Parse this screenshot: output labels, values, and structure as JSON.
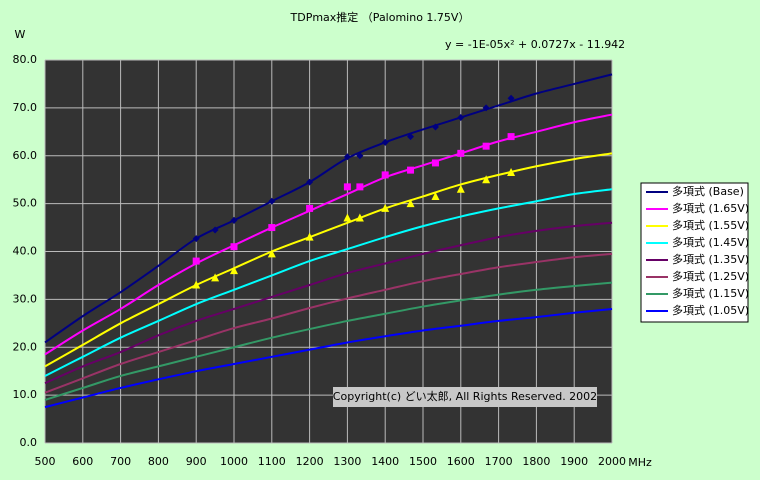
{
  "chart_data": {
    "type": "line",
    "title": "TDPmax推定 （Palomino 1.75V）",
    "y_label": "W",
    "x_label": "MHz",
    "equation": "y = -1E-05x² + 0.0727x - 11.942",
    "copyright": "Copyright(c) どい太郎, All Rights Reserved. 2002",
    "x": [
      500,
      600,
      700,
      800,
      900,
      1000,
      1100,
      1200,
      1300,
      1400,
      1500,
      1600,
      1700,
      1800,
      1900,
      2000
    ],
    "xlim": [
      500,
      2000
    ],
    "xticks": [
      500,
      600,
      700,
      800,
      900,
      1000,
      1100,
      1200,
      1300,
      1400,
      1500,
      1600,
      1700,
      1800,
      1900,
      2000
    ],
    "ylim": [
      0,
      80
    ],
    "yticks": [
      {
        "value": 0,
        "label": "0.0"
      },
      {
        "value": 10,
        "label": "10.0"
      },
      {
        "value": 20,
        "label": "20.0"
      },
      {
        "value": 30,
        "label": "30.0"
      },
      {
        "value": 40,
        "label": "40.0"
      },
      {
        "value": 50,
        "label": "50.0"
      },
      {
        "value": 60,
        "label": "60.0"
      },
      {
        "value": 70,
        "label": "70.0"
      },
      {
        "value": 80,
        "label": "80.0"
      }
    ],
    "grid": true,
    "legend": "right",
    "series": [
      {
        "name": "多項式 (Base)",
        "color": "#000080",
        "values": [
          21,
          26.5,
          31.5,
          37,
          42.7,
          46.5,
          50.5,
          54.5,
          59.5,
          62.8,
          65.5,
          68,
          70.5,
          73,
          75,
          77
        ],
        "marker": "diamond",
        "points": {
          "x": [
            900,
            950,
            1000,
            1100,
            1200,
            1300,
            1333,
            1400,
            1467,
            1533,
            1600,
            1667,
            1733
          ],
          "values": [
            42.7,
            44.5,
            46.5,
            50.5,
            54.5,
            59.8,
            60,
            62.8,
            64,
            66,
            68,
            70,
            72
          ]
        }
      },
      {
        "name": "多項式 (1.65V)",
        "color": "#ff00ff",
        "values": [
          18.5,
          23.5,
          28,
          33,
          37.5,
          41.3,
          45,
          48.5,
          52,
          55.5,
          58,
          60.5,
          63,
          65,
          67,
          68.6
        ],
        "marker": "square",
        "points": {
          "x": [
            900,
            1000,
            1100,
            1200,
            1300,
            1333,
            1400,
            1467,
            1533,
            1600,
            1667,
            1733
          ],
          "values": [
            38,
            41,
            45,
            49,
            53.5,
            53.5,
            56,
            57,
            58.5,
            60.5,
            62,
            64
          ]
        }
      },
      {
        "name": "多項式 (1.55V)",
        "color": "#ffff00",
        "values": [
          16,
          20.5,
          25,
          29,
          33,
          36.5,
          40,
          43,
          46,
          49,
          51.5,
          54,
          56,
          57.8,
          59.3,
          60.5
        ],
        "marker": "triangle",
        "points": {
          "x": [
            900,
            950,
            1000,
            1100,
            1200,
            1300,
            1333,
            1400,
            1467,
            1533,
            1600,
            1667,
            1733
          ],
          "values": [
            33,
            34.5,
            36,
            39.5,
            43,
            47,
            47,
            49,
            50,
            51.5,
            53,
            55,
            56.5
          ]
        }
      },
      {
        "name": "多項式 (1.45V)",
        "color": "#00ffff",
        "values": [
          14,
          18,
          22,
          25.5,
          29,
          32,
          35,
          38,
          40.5,
          43,
          45.3,
          47.3,
          49,
          50.5,
          52,
          53
        ]
      },
      {
        "name": "多項式 (1.35V)",
        "color": "#660066",
        "values": [
          12.5,
          16,
          19,
          22.5,
          25.5,
          28,
          30.5,
          33,
          35.5,
          37.5,
          39.5,
          41.3,
          43,
          44.3,
          45.3,
          46
        ]
      },
      {
        "name": "多項式 (1.25V)",
        "color": "#993366",
        "values": [
          10.5,
          13.5,
          16.5,
          19,
          21.5,
          24,
          26,
          28.2,
          30.2,
          32,
          33.8,
          35.3,
          36.7,
          37.8,
          38.8,
          39.5
        ]
      },
      {
        "name": "多項式 (1.15V)",
        "color": "#339966",
        "values": [
          9,
          11.5,
          14,
          16,
          18,
          20,
          22,
          23.8,
          25.5,
          27,
          28.5,
          29.8,
          31,
          32,
          32.8,
          33.5
        ]
      },
      {
        "name": "多項式 (1.05V)",
        "color": "#0000ff",
        "values": [
          7.5,
          9.5,
          11.5,
          13.3,
          15,
          16.5,
          18,
          19.5,
          21,
          22.3,
          23.5,
          24.5,
          25.5,
          26.3,
          27.2,
          28
        ]
      }
    ]
  }
}
